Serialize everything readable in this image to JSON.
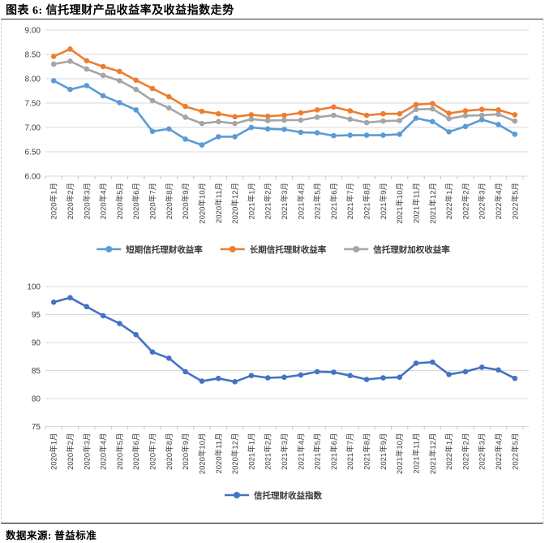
{
  "title": "图表 6: 信托理财产品收益率及收益指数走势",
  "source": "数据来源: 普益标准",
  "chart_data": [
    {
      "type": "line",
      "title": "信托理财产品收益率",
      "categories": [
        "2020年1月",
        "2020年2月",
        "2020年3月",
        "2020年4月",
        "2020年5月",
        "2020年6月",
        "2020年7月",
        "2020年8月",
        "2020年9月",
        "2020年10月",
        "2020年11月",
        "2020年12月",
        "2021年1月",
        "2021年2月",
        "2021年3月",
        "2021年4月",
        "2021年5月",
        "2021年6月",
        "2021年7月",
        "2021年8月",
        "2021年9月",
        "2021年10月",
        "2021年11月",
        "2021年12月",
        "2022年1月",
        "2022年2月",
        "2022年3月",
        "2022年4月",
        "2022年5月"
      ],
      "series": [
        {
          "name": "短期信托理财收益率",
          "color": "#5B9BD5",
          "values": [
            7.96,
            7.78,
            7.86,
            7.65,
            7.51,
            7.36,
            6.92,
            6.97,
            6.76,
            6.64,
            6.81,
            6.81,
            7.0,
            6.97,
            6.96,
            6.9,
            6.89,
            6.83,
            6.84,
            6.84,
            6.84,
            6.86,
            7.19,
            7.12,
            6.91,
            7.02,
            7.16,
            7.06,
            6.86
          ]
        },
        {
          "name": "长期信托理财收益率",
          "color": "#ED7D31",
          "values": [
            8.46,
            8.61,
            8.37,
            8.25,
            8.15,
            7.97,
            7.8,
            7.63,
            7.43,
            7.33,
            7.28,
            7.22,
            7.26,
            7.23,
            7.25,
            7.3,
            7.36,
            7.42,
            7.34,
            7.25,
            7.28,
            7.28,
            7.47,
            7.49,
            7.29,
            7.34,
            7.37,
            7.36,
            7.26
          ]
        },
        {
          "name": "信托理财加权收益率",
          "color": "#A5A5A5",
          "values": [
            8.3,
            8.36,
            8.2,
            8.07,
            7.96,
            7.78,
            7.55,
            7.4,
            7.21,
            7.08,
            7.12,
            7.08,
            7.17,
            7.14,
            7.15,
            7.15,
            7.21,
            7.25,
            7.17,
            7.1,
            7.13,
            7.14,
            7.37,
            7.38,
            7.18,
            7.24,
            7.25,
            7.27,
            7.13
          ]
        }
      ],
      "xlabel": "",
      "ylabel": "",
      "ylim": [
        6.0,
        9.0
      ],
      "ytick_step": 0.5,
      "ytick_decimals": 2,
      "grid": true,
      "legend_position": "bottom"
    },
    {
      "type": "line",
      "title": "信托理财收益指数",
      "categories": [
        "2020年1月",
        "2020年2月",
        "2020年3月",
        "2020年4月",
        "2020年5月",
        "2020年6月",
        "2020年7月",
        "2020年8月",
        "2020年9月",
        "2020年10月",
        "2020年11月",
        "2020年12月",
        "2021年1月",
        "2021年2月",
        "2021年3月",
        "2021年4月",
        "2021年5月",
        "2021年6月",
        "2021年7月",
        "2021年8月",
        "2021年9月",
        "2021年10月",
        "2021年11月",
        "2021年12月",
        "2022年1月",
        "2022年2月",
        "2022年3月",
        "2022年4月",
        "2022年5月"
      ],
      "series": [
        {
          "name": "信托理财收益指数",
          "color": "#4472C4",
          "values": [
            97.2,
            98.0,
            96.4,
            94.8,
            93.4,
            91.4,
            88.3,
            87.2,
            84.8,
            83.1,
            83.6,
            83.0,
            84.1,
            83.7,
            83.8,
            84.2,
            84.8,
            84.7,
            84.1,
            83.4,
            83.7,
            83.8,
            86.3,
            86.5,
            84.3,
            84.8,
            85.6,
            85.1,
            83.6
          ]
        }
      ],
      "xlabel": "",
      "ylabel": "",
      "ylim": [
        75,
        100
      ],
      "ytick_step": 5,
      "ytick_decimals": 0,
      "grid": true,
      "legend_position": "bottom"
    }
  ],
  "colors": {
    "short_term": "#5B9BD5",
    "long_term": "#ED7D31",
    "weighted": "#A5A5A5",
    "index": "#4472C4",
    "gridline": "#d9d9d9"
  }
}
